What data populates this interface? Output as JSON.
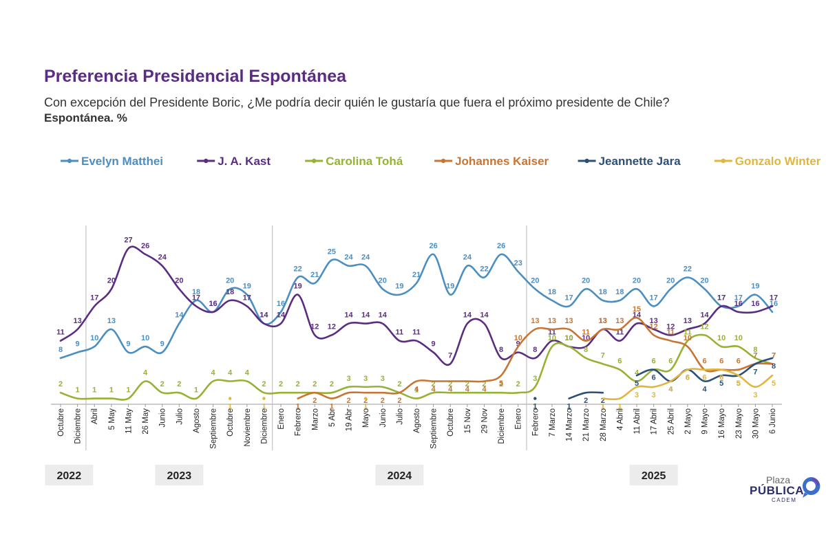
{
  "header": {
    "title": "Preferencia Presidencial Espontánea",
    "question": "Con excepción del Presidente Boric, ¿Me podría decir quién le gustaría que fuera el próximo presidente de Chile?",
    "note": "Espontánea. %"
  },
  "logo": {
    "top": "Plaza",
    "main": "PÚBLICA",
    "sub": "CADEM",
    "mark_icon": "speech-bubble-icon"
  },
  "chart_data": {
    "type": "line",
    "years": [
      {
        "label": "2022",
        "from": 0,
        "to": 1
      },
      {
        "label": "2023",
        "from": 2,
        "to": 12
      },
      {
        "label": "2024",
        "from": 13,
        "to": 27
      },
      {
        "label": "2025",
        "from": 28,
        "to": 42
      }
    ],
    "x": [
      "Octubre",
      "Diciembre",
      "Abril",
      "5 May",
      "11 May",
      "26 May",
      "Junio",
      "Julio",
      "Agosto",
      "Septiembre",
      "Octubre",
      "Noviembre",
      "Diciembre",
      "Enero",
      "Febrero",
      "Marzo",
      "5 Abr",
      "19 Abr",
      "Mayo",
      "Junio",
      "Julio",
      "Agosto",
      "Septiembre",
      "Octubre",
      "15 Nov",
      "29 Nov",
      "Diciembre",
      "Enero",
      "Febrero",
      "7 Marzo",
      "14 Marzo",
      "21 Marzo",
      "28 Marzo",
      "4 Abril",
      "11 Abril",
      "17 Abril",
      "25 Abril",
      "2 Mayo",
      "9 Mayo",
      "16 Mayo",
      "23 Mayo",
      "30 Mayo",
      "6 Junio"
    ],
    "ylim": [
      0,
      30
    ],
    "series": [
      {
        "name": "Evelyn Matthei",
        "color": "#4b8ec2",
        "values": [
          8,
          9,
          10,
          13,
          9,
          10,
          9,
          14,
          18,
          16,
          20,
          19,
          14,
          16,
          22,
          21,
          25,
          24,
          24,
          20,
          19,
          21,
          26,
          19,
          24,
          22,
          26,
          23,
          20,
          18,
          17,
          20,
          18,
          18,
          20,
          17,
          20,
          22,
          20,
          17,
          17,
          19,
          16
        ]
      },
      {
        "name": "J. A. Kast",
        "color": "#5b2d82",
        "values": [
          11,
          13,
          17,
          20,
          27,
          26,
          24,
          20,
          17,
          16,
          18,
          17,
          14,
          14,
          19,
          12,
          12,
          14,
          14,
          14,
          11,
          11,
          9,
          7,
          14,
          14,
          8,
          9,
          8,
          11,
          10,
          10,
          13,
          11,
          14,
          13,
          12,
          13,
          14,
          17,
          16,
          16,
          17
        ]
      },
      {
        "name": "Carolina Tohá",
        "color": "#97b133",
        "values": [
          2,
          1,
          1,
          1,
          1,
          4,
          2,
          2,
          1,
          4,
          4,
          4,
          2,
          2,
          2,
          2,
          2,
          3,
          3,
          3,
          2,
          1,
          2,
          2,
          2,
          2,
          2,
          2,
          3,
          10,
          10,
          8,
          7,
          6,
          4,
          6,
          6,
          11,
          12,
          10,
          10,
          8,
          7
        ]
      },
      {
        "name": "Johannes Kaiser",
        "color": "#c87533",
        "values": [
          null,
          null,
          null,
          null,
          null,
          null,
          null,
          null,
          null,
          null,
          null,
          null,
          null,
          null,
          1,
          2,
          1,
          2,
          2,
          2,
          2,
          4,
          4,
          4,
          4,
          4,
          5,
          10,
          13,
          13,
          13,
          11,
          13,
          13,
          15,
          12,
          11,
          10,
          6,
          6,
          6,
          7,
          7
        ]
      },
      {
        "name": "Jeannette Jara",
        "color": "#2c4f78",
        "values": [
          null,
          null,
          null,
          null,
          null,
          null,
          null,
          null,
          null,
          null,
          null,
          null,
          null,
          null,
          null,
          null,
          null,
          null,
          null,
          null,
          null,
          null,
          null,
          null,
          null,
          null,
          null,
          null,
          1,
          null,
          1,
          2,
          2,
          null,
          5,
          6,
          4,
          6,
          4,
          5,
          5,
          7,
          8
        ]
      },
      {
        "name": "Gonzalo Winter",
        "color": "#e0b63e",
        "values": [
          null,
          null,
          null,
          null,
          null,
          null,
          null,
          null,
          null,
          null,
          1,
          null,
          1,
          null,
          null,
          null,
          null,
          null,
          1,
          null,
          null,
          null,
          null,
          null,
          null,
          null,
          null,
          null,
          null,
          null,
          null,
          null,
          1,
          1,
          3,
          3,
          4,
          6,
          6,
          6,
          5,
          3,
          5
        ]
      }
    ]
  }
}
